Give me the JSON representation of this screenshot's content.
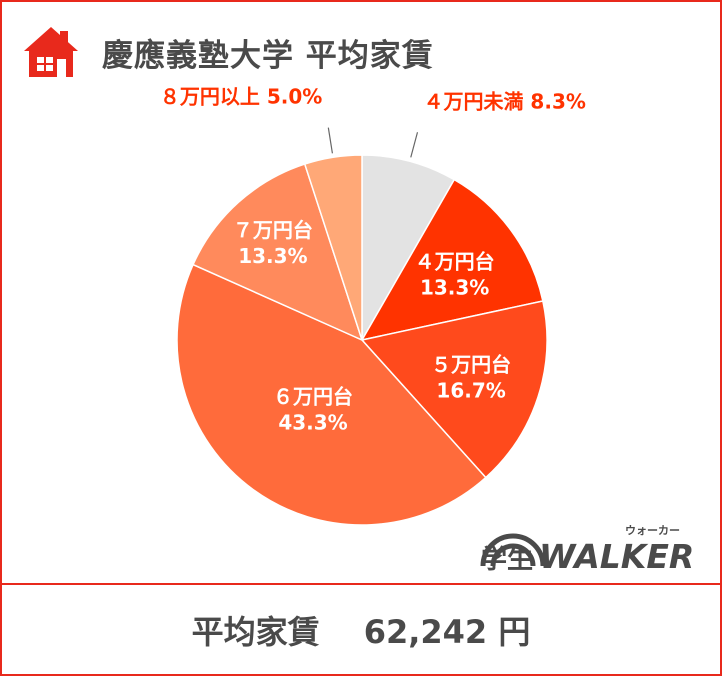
{
  "header": {
    "title": "慶應義塾大学  平均家賃",
    "icon": "house-icon"
  },
  "chart_data": {
    "type": "pie",
    "title": "慶應義塾大学  平均家賃",
    "start_angle_deg": 0,
    "direction": "clockwise",
    "slices": [
      {
        "label": "４万円未満",
        "value": 8.3,
        "display": "8.3%",
        "color": "#e3e3e3"
      },
      {
        "label": "４万円台",
        "value": 13.3,
        "display": "13.3%",
        "color": "#ff3300"
      },
      {
        "label": "５万円台",
        "value": 16.7,
        "display": "16.7%",
        "color": "#ff4a1c"
      },
      {
        "label": "６万円台",
        "value": 43.3,
        "display": "43.3%",
        "color": "#ff6b3b"
      },
      {
        "label": "７万円台",
        "value": 13.3,
        "display": "13.3%",
        "color": "#ff8a5c"
      },
      {
        "label": "８万円以上",
        "value": 5.0,
        "display": "5.0%",
        "color": "#ffa877"
      }
    ]
  },
  "footer": {
    "label": "平均家賃",
    "amount": "62,242 円"
  },
  "logo": {
    "main": "学生WALKER",
    "ruby": "ウォーカー"
  },
  "colors": {
    "accent": "#e8291c",
    "label_red": "#ff3300",
    "text_gray": "#4a4a4a"
  }
}
